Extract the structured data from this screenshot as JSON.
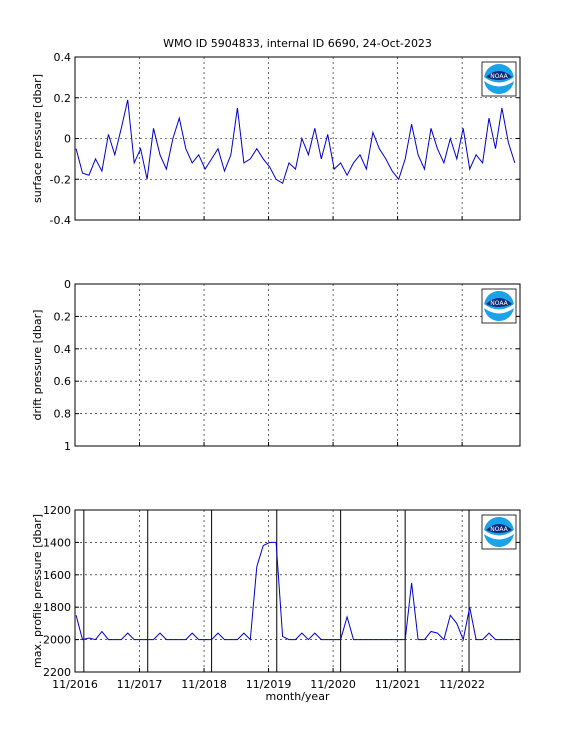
{
  "chart_data": [
    {
      "type": "line",
      "title": "WMO ID 5904833, internal ID 6690, 24-Oct-2023",
      "ylabel": "surface pressure [dbar]",
      "x": [
        2016.85,
        2016.95,
        2017.05,
        2017.15,
        2017.25,
        2017.35,
        2017.45,
        2017.55,
        2017.65,
        2017.75,
        2017.85,
        2017.95,
        2018.05,
        2018.15,
        2018.25,
        2018.35,
        2018.45,
        2018.55,
        2018.65,
        2018.75,
        2018.85,
        2018.95,
        2019.05,
        2019.15,
        2019.25,
        2019.35,
        2019.45,
        2019.55,
        2019.65,
        2019.75,
        2019.85,
        2019.95,
        2020.05,
        2020.15,
        2020.25,
        2020.35,
        2020.45,
        2020.55,
        2020.65,
        2020.75,
        2020.85,
        2020.95,
        2021.05,
        2021.15,
        2021.25,
        2021.35,
        2021.45,
        2021.55,
        2021.65,
        2021.75,
        2021.85,
        2021.95,
        2022.05,
        2022.15,
        2022.25,
        2022.35,
        2022.45,
        2022.55,
        2022.65,
        2022.75,
        2022.85,
        2022.95,
        2023.05,
        2023.15,
        2023.25,
        2023.35,
        2023.45,
        2023.55,
        2023.65
      ],
      "series": [
        {
          "name": "surface pressure",
          "color": "#0000cc",
          "values": [
            -0.05,
            -0.17,
            -0.18,
            -0.1,
            -0.16,
            0.02,
            -0.08,
            0.05,
            0.19,
            -0.12,
            -0.05,
            -0.2,
            0.05,
            -0.08,
            -0.15,
            0.0,
            0.1,
            -0.05,
            -0.12,
            -0.08,
            -0.15,
            -0.1,
            -0.05,
            -0.16,
            -0.08,
            0.15,
            -0.12,
            -0.1,
            -0.05,
            -0.1,
            -0.14,
            -0.2,
            -0.22,
            -0.12,
            -0.15,
            0.0,
            -0.08,
            0.05,
            -0.1,
            0.02,
            -0.15,
            -0.12,
            -0.18,
            -0.12,
            -0.08,
            -0.15,
            0.03,
            -0.05,
            -0.1,
            -0.16,
            -0.2,
            -0.1,
            0.07,
            -0.08,
            -0.15,
            0.05,
            -0.05,
            -0.12,
            0.0,
            -0.1,
            0.05,
            -0.15,
            -0.08,
            -0.12,
            0.1,
            -0.05,
            0.15,
            -0.02,
            -0.12
          ]
        }
      ],
      "xlim": [
        2016.833,
        2023.73
      ],
      "xticks": [
        {
          "value": 2016.833,
          "label": ""
        },
        {
          "value": 2017.833,
          "label": ""
        },
        {
          "value": 2018.833,
          "label": ""
        },
        {
          "value": 2019.833,
          "label": ""
        },
        {
          "value": 2020.833,
          "label": ""
        },
        {
          "value": 2021.833,
          "label": ""
        },
        {
          "value": 2022.833,
          "label": ""
        }
      ],
      "ylim": [
        -0.4,
        0.4
      ],
      "yticks": [
        -0.4,
        -0.2,
        0,
        0.2,
        0.4
      ],
      "grid": true,
      "logo_text": "NOAA"
    },
    {
      "type": "line",
      "ylabel": "drift pressure [dbar]",
      "series": [],
      "xlim": [
        2016.833,
        2023.73
      ],
      "xticks": [
        {
          "value": 2016.833,
          "label": ""
        },
        {
          "value": 2017.833,
          "label": ""
        },
        {
          "value": 2018.833,
          "label": ""
        },
        {
          "value": 2019.833,
          "label": ""
        },
        {
          "value": 2020.833,
          "label": ""
        },
        {
          "value": 2021.833,
          "label": ""
        },
        {
          "value": 2022.833,
          "label": ""
        }
      ],
      "ylim": [
        0,
        1
      ],
      "yticks": [
        0,
        0.2,
        0.4,
        0.6,
        0.8,
        1
      ],
      "reverse_y": true,
      "grid": true,
      "logo_text": "NOAA"
    },
    {
      "type": "line",
      "ylabel": "max. profile pressure [dbar]",
      "xlabel": "month/year",
      "x": [
        2016.85,
        2016.95,
        2017.05,
        2017.15,
        2017.25,
        2017.35,
        2017.45,
        2017.55,
        2017.65,
        2017.75,
        2017.85,
        2017.95,
        2018.05,
        2018.15,
        2018.25,
        2018.35,
        2018.45,
        2018.55,
        2018.65,
        2018.75,
        2018.85,
        2018.95,
        2019.05,
        2019.15,
        2019.25,
        2019.35,
        2019.45,
        2019.55,
        2019.65,
        2019.75,
        2019.85,
        2019.95,
        2020.05,
        2020.15,
        2020.25,
        2020.35,
        2020.45,
        2020.55,
        2020.65,
        2020.75,
        2020.85,
        2020.95,
        2021.05,
        2021.15,
        2021.25,
        2021.35,
        2021.45,
        2021.55,
        2021.65,
        2021.75,
        2021.85,
        2021.95,
        2022.05,
        2022.15,
        2022.25,
        2022.35,
        2022.45,
        2022.55,
        2022.65,
        2022.75,
        2022.85,
        2022.95,
        2023.05,
        2023.15,
        2023.25,
        2023.35,
        2023.45,
        2023.55,
        2023.65
      ],
      "series": [
        {
          "name": "max. profile pressure",
          "color": "#0000cc",
          "values": [
            1850,
            2000,
            1990,
            2000,
            1950,
            2000,
            2000,
            2000,
            1960,
            2000,
            2000,
            2000,
            2000,
            1960,
            2000,
            2000,
            2000,
            2000,
            1960,
            2000,
            2000,
            2000,
            1960,
            2000,
            2000,
            2000,
            1960,
            2000,
            1550,
            1420,
            1400,
            1400,
            1980,
            2000,
            2000,
            1960,
            2000,
            1960,
            2000,
            2000,
            2000,
            2000,
            1860,
            2000,
            2000,
            2000,
            2000,
            2000,
            2000,
            2000,
            2000,
            2000,
            1650,
            2000,
            2000,
            1950,
            1960,
            2000,
            1850,
            1900,
            2000,
            1800,
            2000,
            2000,
            1960,
            2000,
            2000,
            2000,
            2000
          ]
        }
      ],
      "vlines": [
        2016.97,
        2017.96,
        2018.95,
        2019.96,
        2020.95,
        2021.95,
        2022.94
      ],
      "xlim": [
        2016.833,
        2023.73
      ],
      "xticks": [
        {
          "value": 2016.833,
          "label": "11/2016"
        },
        {
          "value": 2017.833,
          "label": "11/2017"
        },
        {
          "value": 2018.833,
          "label": "11/2018"
        },
        {
          "value": 2019.833,
          "label": "11/2019"
        },
        {
          "value": 2020.833,
          "label": "11/2020"
        },
        {
          "value": 2021.833,
          "label": "11/2021"
        },
        {
          "value": 2022.833,
          "label": "11/2022"
        }
      ],
      "ylim": [
        1200,
        2200
      ],
      "yticks": [
        1200,
        1400,
        1600,
        1800,
        2000,
        2200
      ],
      "reverse_y": true,
      "grid": true,
      "logo_text": "NOAA"
    }
  ]
}
